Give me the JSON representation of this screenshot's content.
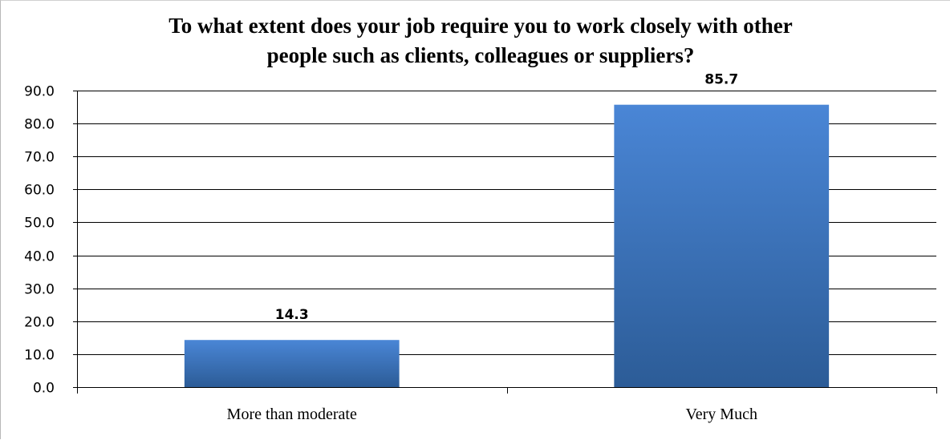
{
  "chart_data": {
    "type": "bar",
    "title": [
      "To what extent does your job require you to work closely with other",
      "people such as clients, colleagues or suppliers?"
    ],
    "categories": [
      "More than moderate",
      "Very Much"
    ],
    "values": [
      14.3,
      85.7
    ],
    "value_labels": [
      "14.3",
      "85.7"
    ],
    "ylim": [
      0,
      90
    ],
    "y_ticks": [
      "0.0",
      "10.0",
      "20.0",
      "30.0",
      "40.0",
      "50.0",
      "60.0",
      "70.0",
      "80.0",
      "90.0"
    ],
    "xlabel": "",
    "ylabel": "",
    "grid": true,
    "legend": "none",
    "colors": {
      "bar_top": "#4a86d6",
      "bar_bottom": "#2c5c97",
      "grid": "#000000",
      "axis": "#000000"
    }
  }
}
